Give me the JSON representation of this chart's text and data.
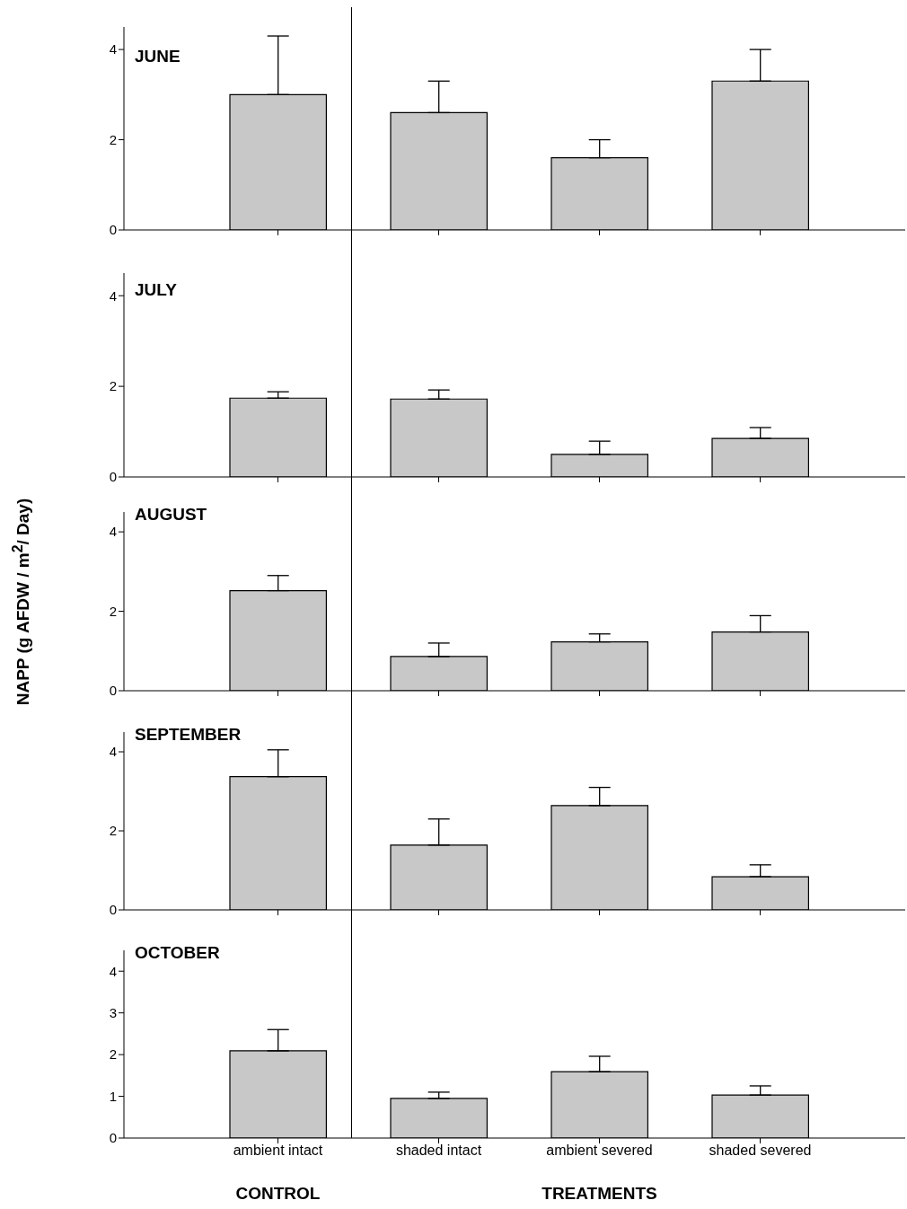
{
  "chart_data": [
    {
      "type": "bar",
      "title": "JUNE",
      "categories": [
        null,
        null,
        null,
        null
      ],
      "values": [
        3.0,
        2.6,
        1.6,
        3.3
      ],
      "errors": [
        [
          3.0,
          4.3
        ],
        [
          2.6,
          3.3
        ],
        [
          1.6,
          2.0
        ],
        [
          3.3,
          4.0
        ]
      ],
      "color": "#c8c8c8",
      "ylim": [
        0,
        4.5
      ],
      "yticks": [
        0,
        2,
        4
      ],
      "tick_labels": "y"
    },
    {
      "type": "bar",
      "title": "JULY",
      "categories": [
        null,
        null,
        null,
        null
      ],
      "values": [
        1.74,
        1.72,
        0.5,
        0.85
      ],
      "errors": [
        [
          1.74,
          1.88
        ],
        [
          1.72,
          1.92
        ],
        [
          0.5,
          0.79
        ],
        [
          0.85,
          1.09
        ]
      ],
      "color": "#c8c8c8",
      "ylim": [
        0,
        4.5
      ],
      "yticks": [
        0,
        2,
        4
      ],
      "tick_labels": "y"
    },
    {
      "type": "bar",
      "title": "AUGUST",
      "ylabel": "NAPP (g AFDW / m$^{2}$/ Day)",
      "categories": [
        null,
        null,
        null,
        null
      ],
      "values": [
        2.52,
        0.86,
        1.23,
        1.48
      ],
      "errors": [
        [
          2.52,
          2.9
        ],
        [
          0.86,
          1.2
        ],
        [
          1.23,
          1.43
        ],
        [
          1.48,
          1.89
        ]
      ],
      "color": "#c8c8c8",
      "ylim": [
        0,
        4.5
      ],
      "yticks": [
        0,
        2,
        4
      ],
      "tick_labels": "y"
    },
    {
      "type": "bar",
      "title": "SEPTEMBER",
      "categories": [
        null,
        null,
        null,
        null
      ],
      "values": [
        3.37,
        1.64,
        2.64,
        0.84
      ],
      "errors": [
        [
          3.37,
          4.05
        ],
        [
          1.64,
          2.3
        ],
        [
          2.64,
          3.1
        ],
        [
          0.84,
          1.14
        ]
      ],
      "color": "#c8c8c8",
      "ylim": [
        0,
        4.5
      ],
      "yticks": [
        0,
        2,
        4
      ],
      "tick_labels": "y"
    },
    {
      "type": "bar",
      "title": "OCTOBER",
      "categories": [
        "ambient intact",
        "shaded intact",
        "ambient severed",
        "shaded severed"
      ],
      "values": [
        2.09,
        0.95,
        1.59,
        1.03
      ],
      "errors": [
        [
          2.09,
          2.6
        ],
        [
          0.95,
          1.1
        ],
        [
          1.59,
          1.96
        ],
        [
          1.03,
          1.25
        ]
      ],
      "color": "#c8c8c8",
      "ylim": [
        0,
        4.5
      ],
      "yticks": [
        0,
        1,
        2,
        3,
        4
      ],
      "annotations": [
        "CONTROL",
        "TREATMENTS"
      ]
    }
  ]
}
